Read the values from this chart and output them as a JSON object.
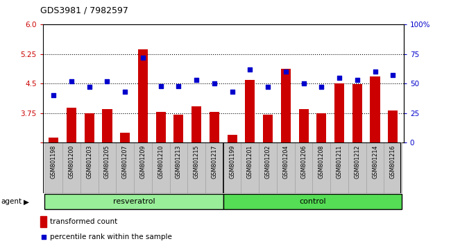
{
  "title": "GDS3981 / 7982597",
  "samples": [
    "GSM801198",
    "GSM801200",
    "GSM801203",
    "GSM801205",
    "GSM801207",
    "GSM801209",
    "GSM801210",
    "GSM801213",
    "GSM801215",
    "GSM801217",
    "GSM801199",
    "GSM801201",
    "GSM801202",
    "GSM801204",
    "GSM801206",
    "GSM801208",
    "GSM801211",
    "GSM801212",
    "GSM801214",
    "GSM801216"
  ],
  "bar_values": [
    3.13,
    3.88,
    3.75,
    3.85,
    3.25,
    5.38,
    3.78,
    3.72,
    3.92,
    3.78,
    3.2,
    4.6,
    3.72,
    4.88,
    3.85,
    3.75,
    4.5,
    4.48,
    4.68,
    3.82
  ],
  "percentile_values": [
    40,
    52,
    47,
    52,
    43,
    72,
    48,
    48,
    53,
    50,
    43,
    62,
    47,
    60,
    50,
    47,
    55,
    53,
    60,
    57
  ],
  "resveratrol_count": 10,
  "control_count": 10,
  "bar_color": "#cc0000",
  "dot_color": "#0000cc",
  "resveratrol_bg": "#99ee99",
  "control_bg": "#55dd55",
  "agent_label": "agent",
  "resveratrol_label": "resveratrol",
  "control_label": "control",
  "ylim_left": [
    3.0,
    6.0
  ],
  "ylim_right": [
    0,
    100
  ],
  "yticks_left": [
    3.0,
    3.75,
    4.5,
    5.25,
    6.0
  ],
  "yticks_right": [
    0,
    25,
    50,
    75,
    100
  ],
  "ytick_labels_right": [
    "0",
    "25",
    "50",
    "75",
    "100%"
  ],
  "hline_values": [
    3.75,
    4.5,
    5.25
  ],
  "legend_bar_label": "transformed count",
  "legend_dot_label": "percentile rank within the sample",
  "tick_area_bg": "#c8c8c8",
  "spine_color": "#000000"
}
